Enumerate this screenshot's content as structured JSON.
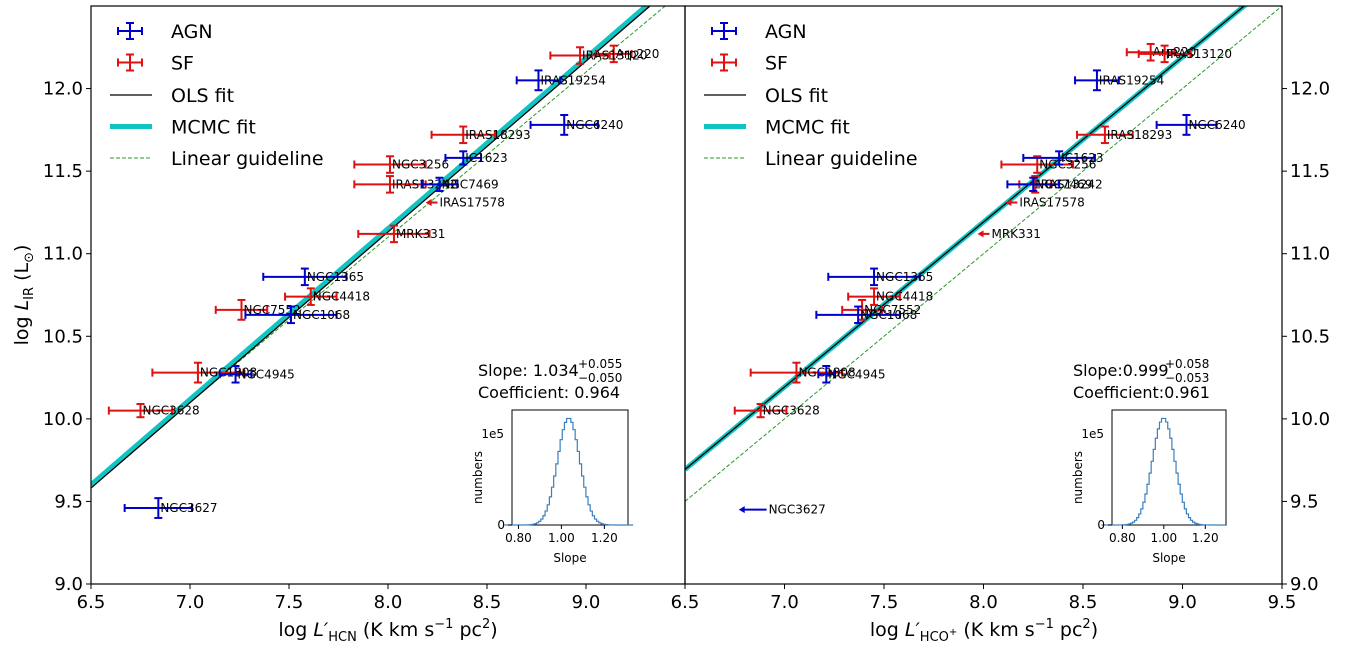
{
  "colors": {
    "agn": "#0000cc",
    "sf": "#dd1111",
    "ols": "#000000",
    "mcmc": "#11c4c4",
    "guide": "#2a9a2a",
    "hist": "#3a7fbf"
  },
  "legend": {
    "agn": "AGN",
    "sf": "SF",
    "ols": "OLS fit",
    "mcmc": "MCMC fit",
    "guide": "Linear guideline"
  },
  "chart_data": [
    {
      "type": "scatter",
      "xlabel_prefix": "log ",
      "xlabel_L": "L",
      "xlabel_sub": "HCN",
      "xlabel_unit": "(K km s",
      "xlabel_exp": "−1",
      "xlabel_unit2": " pc",
      "xlabel_exp2": "2",
      "xlabel_close": ")",
      "ylabel_prefix": "log ",
      "ylabel_L": "L",
      "ylabel_sub": "IR",
      "ylabel_unit": "(L",
      "ylabel_sun": "⊙",
      "ylabel_close": ")",
      "xlim": [
        6.5,
        9.5
      ],
      "ylim": [
        9.0,
        12.5
      ],
      "xticks": [
        "6.5",
        "7.0",
        "7.5",
        "8.0",
        "8.5",
        "9.0"
      ],
      "yticks": [
        "9.0",
        "9.5",
        "10.0",
        "10.5",
        "11.0",
        "11.5",
        "12.0"
      ],
      "fit_ols": {
        "slope": 1.034,
        "intercept": 2.86
      },
      "fit_mcmc": {
        "slope": 1.034,
        "intercept": 2.88
      },
      "guide": {
        "slope": 1.0,
        "intercept": 3.1
      },
      "slope_text": "Slope: 1.034",
      "slope_sup": "+0.055",
      "slope_sub": "−0.050",
      "coef_text": "Coefficient: 0.964",
      "points": [
        {
          "name": "NGC3627",
          "type": "agn",
          "x": 6.84,
          "y": 9.46,
          "xerr": 0.17,
          "yerr": 0.06
        },
        {
          "name": "NGC3628",
          "type": "sf",
          "x": 6.75,
          "y": 10.05,
          "xerr": 0.16,
          "yerr": 0.04
        },
        {
          "name": "NGC1808",
          "type": "sf",
          "x": 7.04,
          "y": 10.28,
          "xerr": 0.23,
          "yerr": 0.06
        },
        {
          "name": "NGC4945",
          "type": "agn",
          "x": 7.23,
          "y": 10.27,
          "xerr": 0.08,
          "yerr": 0.05
        },
        {
          "name": "NGC7552",
          "type": "sf",
          "x": 7.26,
          "y": 10.66,
          "xerr": 0.13,
          "yerr": 0.06
        },
        {
          "name": "NGC1068",
          "type": "agn",
          "x": 7.51,
          "y": 10.63,
          "xerr": 0.23,
          "yerr": 0.05
        },
        {
          "name": "NGC4418",
          "type": "sf",
          "x": 7.61,
          "y": 10.74,
          "xerr": 0.13,
          "yerr": 0.05
        },
        {
          "name": "NGC1365",
          "type": "agn",
          "x": 7.58,
          "y": 10.86,
          "xerr": 0.21,
          "yerr": 0.05
        },
        {
          "name": "MRK331",
          "type": "sf",
          "x": 8.03,
          "y": 11.12,
          "xerr": 0.18,
          "yerr": 0.05
        },
        {
          "name": "IRAS17578",
          "type": "sf",
          "x": 8.25,
          "y": 11.31,
          "xerr": 0.06,
          "limit": "left"
        },
        {
          "name": "IRAS13242",
          "type": "sf",
          "x": 8.01,
          "y": 11.42,
          "xerr": 0.18,
          "yerr": 0.05
        },
        {
          "name": "NGC7469",
          "type": "agn",
          "x": 8.26,
          "y": 11.42,
          "xerr": 0.09,
          "yerr": 0.04
        },
        {
          "name": "NGC3256",
          "type": "sf",
          "x": 8.01,
          "y": 11.54,
          "xerr": 0.18,
          "yerr": 0.05
        },
        {
          "name": "IC1623",
          "type": "agn",
          "x": 8.38,
          "y": 11.58,
          "xerr": 0.09,
          "yerr": 0.04
        },
        {
          "name": "IRAS18293",
          "type": "sf",
          "x": 8.38,
          "y": 11.72,
          "xerr": 0.16,
          "yerr": 0.05
        },
        {
          "name": "NGC6240",
          "type": "agn",
          "x": 8.89,
          "y": 11.78,
          "xerr": 0.17,
          "yerr": 0.06
        },
        {
          "name": "IRAS19254",
          "type": "agn",
          "x": 8.76,
          "y": 12.05,
          "xerr": 0.11,
          "yerr": 0.06
        },
        {
          "name": "Arp220",
          "type": "sf",
          "x": 9.14,
          "y": 12.21,
          "xerr": 0.09,
          "yerr": 0.05
        },
        {
          "name": "IRAS13120",
          "type": "sf",
          "x": 8.97,
          "y": 12.2,
          "xerr": 0.15,
          "yerr": 0.05
        }
      ],
      "inset": {
        "xlabel": "Slope",
        "ylabel": "numbers",
        "scale_label": "1e5",
        "xticks": [
          "0.80",
          "1.00",
          "1.20"
        ],
        "yticks": [
          "0"
        ],
        "xlim": [
          0.77,
          1.31
        ],
        "center": 1.034,
        "sigma": 0.052
      }
    },
    {
      "type": "scatter",
      "xlabel_prefix": "log ",
      "xlabel_L": "L",
      "xlabel_sub": "HCO",
      "xlabel_subsup": "+",
      "xlabel_unit": "(K km s",
      "xlabel_exp": "−1",
      "xlabel_unit2": " pc",
      "xlabel_exp2": "2",
      "xlabel_close": ")",
      "xlim": [
        6.5,
        9.5
      ],
      "ylim": [
        9.0,
        12.5
      ],
      "xticks": [
        "6.5",
        "7.0",
        "7.5",
        "8.0",
        "8.5",
        "9.0",
        "9.5"
      ],
      "yticks": [
        "9.0",
        "9.5",
        "10.0",
        "10.5",
        "11.0",
        "11.5",
        "12.0"
      ],
      "fit_ols": {
        "slope": 0.999,
        "intercept": 3.2
      },
      "fit_mcmc": {
        "slope": 0.999,
        "intercept": 3.2
      },
      "guide": {
        "slope": 1.0,
        "intercept": 3.0
      },
      "slope_text": "Slope:0.999",
      "slope_sup": "+0.058",
      "slope_sub": "−0.053",
      "coef_text": "Coefficient:0.961",
      "points": [
        {
          "name": "NGC3627",
          "type": "agn",
          "x": 6.91,
          "y": 9.45,
          "xerr": 0.14,
          "limit": "left"
        },
        {
          "name": "NGC3628",
          "type": "sf",
          "x": 6.88,
          "y": 10.05,
          "xerr": 0.13,
          "yerr": 0.04
        },
        {
          "name": "NGC1808",
          "type": "sf",
          "x": 7.06,
          "y": 10.28,
          "xerr": 0.23,
          "yerr": 0.06
        },
        {
          "name": "NGC4945",
          "type": "agn",
          "x": 7.21,
          "y": 10.27,
          "xerr": 0.04,
          "yerr": 0.05
        },
        {
          "name": "NGC7552",
          "type": "sf",
          "x": 7.39,
          "y": 10.66,
          "xerr": 0.1,
          "yerr": 0.06
        },
        {
          "name": "NGC1068",
          "type": "agn",
          "x": 7.37,
          "y": 10.63,
          "xerr": 0.21,
          "yerr": 0.05
        },
        {
          "name": "NGC4418",
          "type": "sf",
          "x": 7.45,
          "y": 10.74,
          "xerr": 0.13,
          "yerr": 0.05
        },
        {
          "name": "NGC1365",
          "type": "agn",
          "x": 7.45,
          "y": 10.86,
          "xerr": 0.23,
          "yerr": 0.05
        },
        {
          "name": "MRK331",
          "type": "sf",
          "x": 8.03,
          "y": 11.12,
          "xerr": 0.06,
          "limit": "left"
        },
        {
          "name": "IRAS17578",
          "type": "sf",
          "x": 8.17,
          "y": 11.31,
          "xerr": 0.06,
          "limit": "left"
        },
        {
          "name": "IRAS13242",
          "type": "sf",
          "x": 8.26,
          "y": 11.42,
          "xerr": 0.08,
          "yerr": 0.05
        },
        {
          "name": "NGC7469",
          "type": "agn",
          "x": 8.25,
          "y": 11.42,
          "xerr": 0.13,
          "yerr": 0.04
        },
        {
          "name": "NGC3256",
          "type": "sf",
          "x": 8.27,
          "y": 11.54,
          "xerr": 0.18,
          "yerr": 0.05
        },
        {
          "name": "IC1623",
          "type": "agn",
          "x": 8.38,
          "y": 11.58,
          "xerr": 0.18,
          "yerr": 0.04
        },
        {
          "name": "IRAS18293",
          "type": "sf",
          "x": 8.61,
          "y": 11.72,
          "xerr": 0.14,
          "yerr": 0.05
        },
        {
          "name": "NGC6240",
          "type": "agn",
          "x": 9.02,
          "y": 11.78,
          "xerr": 0.15,
          "yerr": 0.06
        },
        {
          "name": "IRAS19254",
          "type": "agn",
          "x": 8.57,
          "y": 12.05,
          "xerr": 0.11,
          "yerr": 0.06
        },
        {
          "name": "Arp220",
          "type": "sf",
          "x": 8.84,
          "y": 12.22,
          "xerr": 0.12,
          "yerr": 0.05
        },
        {
          "name": "IRAS13120",
          "type": "sf",
          "x": 8.91,
          "y": 12.21,
          "xerr": 0.13,
          "yerr": 0.05
        }
      ],
      "inset": {
        "xlabel": "Slope",
        "ylabel": "numbers",
        "scale_label": "1e5",
        "xticks": [
          "0.80",
          "1.00",
          "1.20"
        ],
        "yticks": [
          "0"
        ],
        "xlim": [
          0.75,
          1.3
        ],
        "center": 0.999,
        "sigma": 0.054
      }
    }
  ]
}
